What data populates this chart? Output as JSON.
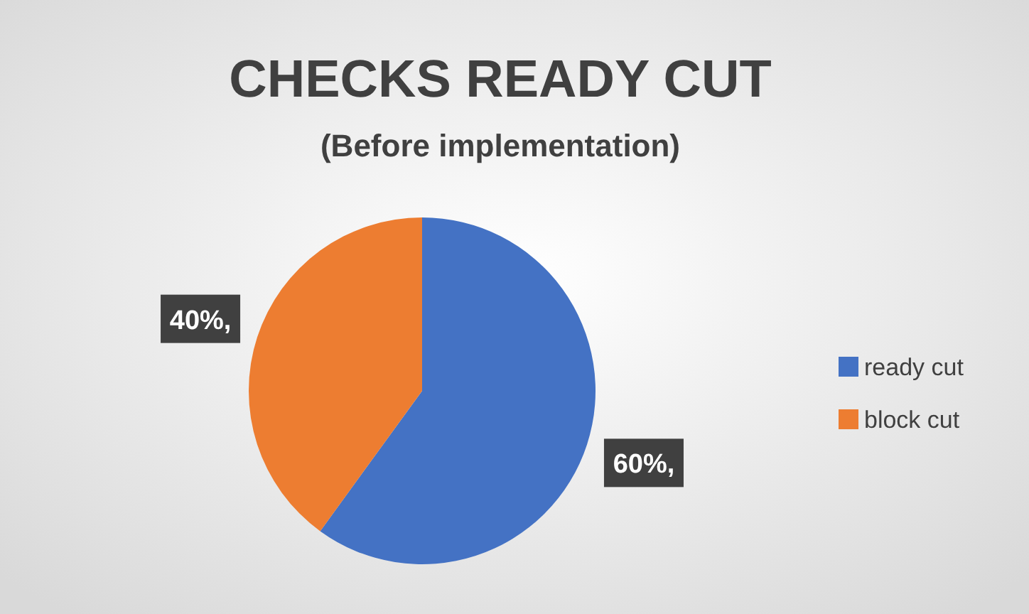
{
  "chart_data": {
    "type": "pie",
    "title": "CHECKS READY CUT",
    "subtitle": "(Before implementation)",
    "categories": [
      "ready cut",
      "block cut"
    ],
    "values": [
      60,
      40
    ],
    "colors": [
      "#4472c4",
      "#ed7d31"
    ],
    "value_labels": [
      "60%,",
      "40%,"
    ],
    "legend": "right"
  }
}
